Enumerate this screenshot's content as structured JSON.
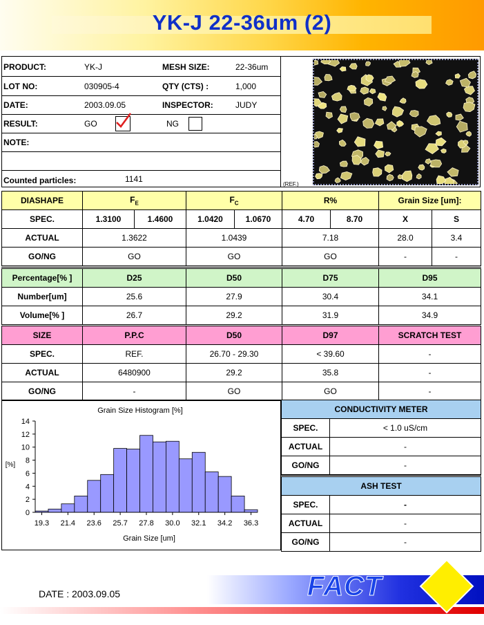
{
  "title": "YK-J 22-36um (2)",
  "info": {
    "product_label": "PRODUCT:",
    "product": "YK-J",
    "mesh_label": "MESH SIZE:",
    "mesh": "22-36um",
    "lot_label": "LOT NO:",
    "lot": "030905-4",
    "qty_label": "QTY (CTS) :",
    "qty": "1,000",
    "date_label": "DATE:",
    "date": "2003.09.05",
    "inspector_label": "INSPECTOR:",
    "inspector": "JUDY",
    "result_label": "RESULT:",
    "go": "GO",
    "ng": "NG",
    "note_label": "NOTE:",
    "counted_label": "Counted particles:",
    "counted": "1141",
    "ref": "(REF.)"
  },
  "diashape": {
    "header": [
      "DIASHAPE",
      "FE",
      "FC",
      "R%",
      "Grain Size [um]:"
    ],
    "spec_label": "SPEC.",
    "spec": [
      "1.3100",
      "1.4600",
      "1.0420",
      "1.0670",
      "4.70",
      "8.70",
      "X",
      "S"
    ],
    "actual_label": "ACTUAL",
    "actual": [
      "1.3622",
      "1.0439",
      "7.18",
      "28.0",
      "3.4"
    ],
    "gong_label": "GO/NG",
    "gong": [
      "GO",
      "GO",
      "GO",
      "-",
      "-"
    ]
  },
  "percentage": {
    "header": [
      "Percentage[% ]",
      "D25",
      "D50",
      "D75",
      "D95"
    ],
    "number_label": "Number[um]",
    "number": [
      "25.6",
      "27.9",
      "30.4",
      "34.1"
    ],
    "volume_label": "Volume[% ]",
    "volume": [
      "26.7",
      "29.2",
      "31.9",
      "34.9"
    ]
  },
  "size": {
    "header": [
      "SIZE",
      "P.P.C",
      "D50",
      "D97",
      "SCRATCH TEST"
    ],
    "spec_label": "SPEC.",
    "spec": [
      "REF.",
      "26.70 - 29.30",
      "< 39.60",
      "-"
    ],
    "actual_label": "ACTUAL",
    "actual": [
      "6480900",
      "29.2",
      "35.8",
      "-"
    ],
    "gong_label": "GO/NG",
    "gong": [
      "-",
      "GO",
      "GO",
      "-"
    ]
  },
  "conductivity": {
    "title": "CONDUCTIVITY METER",
    "spec_label": "SPEC.",
    "spec": "< 1.0 uS/cm",
    "actual_label": "ACTUAL",
    "actual": "-",
    "gong_label": "GO/NG",
    "gong": "-"
  },
  "ash": {
    "title": "ASH TEST",
    "spec_label": "SPEC.",
    "spec": "-",
    "actual_label": "ACTUAL",
    "actual": "-",
    "gong_label": "GO/NG",
    "gong": "-"
  },
  "chart_data": {
    "type": "bar",
    "title": "Grain Size Histogram [%]",
    "xlabel": "Grain Size [um]",
    "ylabel": "[%]",
    "ylim": [
      0,
      14
    ],
    "yticks": [
      "0",
      "2",
      "4",
      "6",
      "8",
      "10",
      "12",
      "14"
    ],
    "xtick_labels": [
      "19.3",
      "21.4",
      "23.6",
      "25.7",
      "27.8",
      "30.0",
      "32.1",
      "34.2",
      "36.3"
    ],
    "values": [
      0.2,
      0.5,
      1.3,
      2.5,
      4.9,
      5.8,
      9.8,
      9.7,
      11.8,
      10.8,
      10.9,
      8.2,
      9.2,
      6.2,
      5.5,
      2.5,
      0.4
    ],
    "bar_color": "#9999ff",
    "grid": false,
    "legend": "none"
  },
  "footer": {
    "date": "DATE : 2003.09.05",
    "logo": "FACT"
  }
}
